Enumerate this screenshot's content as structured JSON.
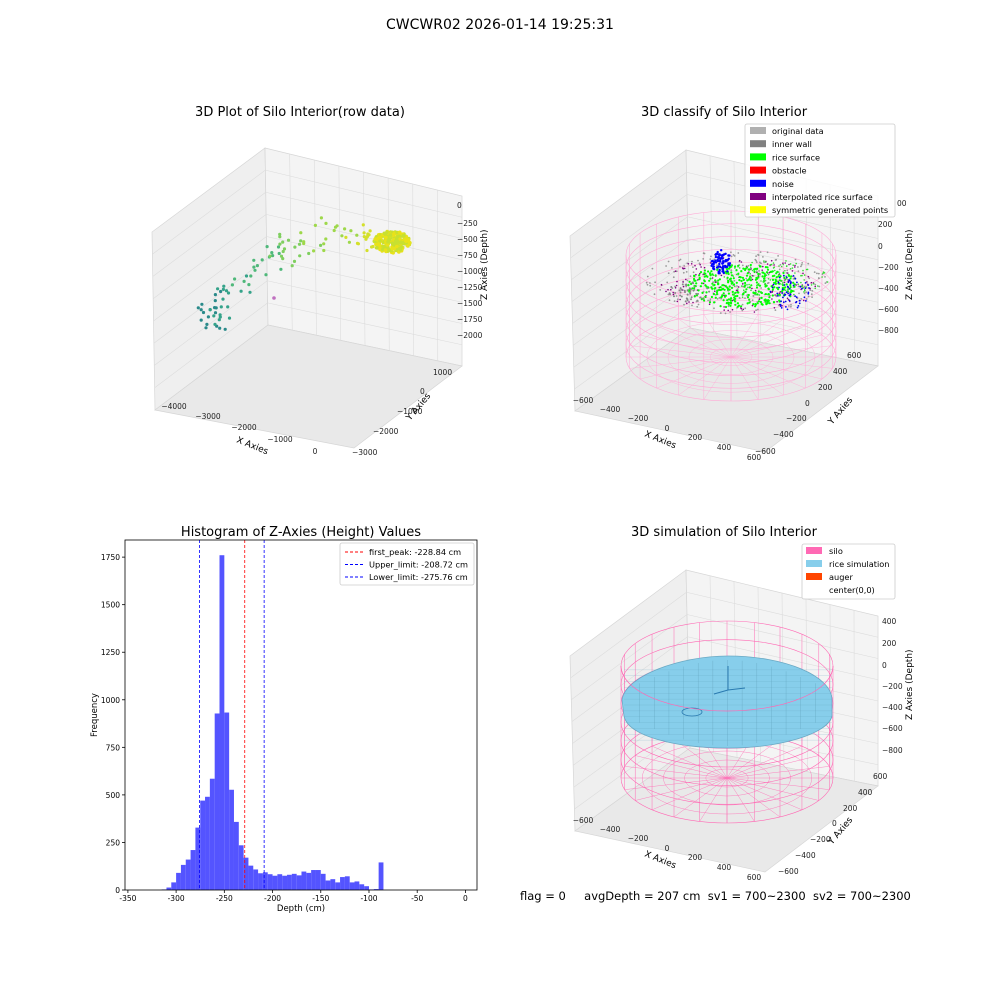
{
  "figure_title": "CWCWR02 2026-01-14 19:25:31",
  "status": {
    "flag": "flag = 0",
    "avg_depth": "avgDepth = 207 cm",
    "sv1": "sv1 = 700~2300",
    "sv2": "sv2 = 700~2300"
  },
  "colors": {
    "original_data": "#b0b0b0",
    "inner_wall": "#808080",
    "rice_surface": "#00ff00",
    "obstacle": "#ff0000",
    "noise": "#0000ff",
    "interpolated_rice_surface": "#800080",
    "symmetric_generated_points": "#ffff00",
    "silo": "#ff69b4",
    "rice_simulation": "#87ceeb",
    "auger": "#ff4500",
    "histogram_bar": "#4b4bff",
    "first_peak_line": "#ff0000",
    "limit_line": "#0000ff"
  },
  "chart_data": [
    {
      "type": "scatter",
      "title": "3D Plot of Silo Interior(row data)",
      "xlabel": "X Axies",
      "ylabel": "Y Axies",
      "zlabel": "Z Axies (Depth)",
      "x_ticks": [
        "−4000",
        "−3000",
        "−2000",
        "−1000",
        "0"
      ],
      "y_ticks": [
        "1000",
        "0",
        "−1000",
        "−2000",
        "−3000"
      ],
      "z_ticks": [
        "0",
        "−250",
        "−500",
        "−750",
        "−1000",
        "−1250",
        "−1500",
        "−1750",
        "−2000"
      ]
    },
    {
      "type": "scatter",
      "title": "3D classify of Silo Interior",
      "xlabel": "X Axies",
      "ylabel": "Y Axies",
      "zlabel": "Z Axies (Depth)",
      "x_ticks": [
        "−600",
        "−400",
        "−200",
        "0",
        "200",
        "400",
        "600"
      ],
      "y_ticks": [
        "600",
        "400",
        "200",
        "0",
        "−200",
        "−400",
        "−600"
      ],
      "z_ticks": [
        "200",
        "0",
        "−200",
        "−400",
        "−600",
        "−800"
      ],
      "z_top_partial_label": "00",
      "legend": [
        {
          "label": "original data",
          "color": "#b0b0b0"
        },
        {
          "label": "inner wall",
          "color": "#808080"
        },
        {
          "label": "rice surface",
          "color": "#00ff00"
        },
        {
          "label": "obstacle",
          "color": "#ff0000"
        },
        {
          "label": "noise",
          "color": "#0000ff"
        },
        {
          "label": "interpolated rice surface",
          "color": "#800080"
        },
        {
          "label": "symmetric generated points",
          "color": "#ffff00"
        }
      ],
      "legend_position": "top-right"
    },
    {
      "type": "bar",
      "title": "Histogram of Z-Axies (Height) Values",
      "xlabel": "Depth (cm)",
      "ylabel": "Frequency",
      "xlim": [
        -353,
        12
      ],
      "ylim": [
        0,
        1840
      ],
      "x_ticks": [
        -350,
        -300,
        -250,
        -200,
        -150,
        -100,
        -50,
        0
      ],
      "y_ticks": [
        0,
        250,
        500,
        750,
        1000,
        1250,
        1500,
        1750
      ],
      "bin_width": 5,
      "bin_start": -315,
      "values": [
        3,
        13,
        40,
        90,
        132,
        160,
        210,
        328,
        470,
        490,
        585,
        928,
        1760,
        933,
        527,
        358,
        235,
        170,
        128,
        108,
        88,
        93,
        83,
        75,
        83,
        75,
        80,
        85,
        77,
        97,
        90,
        105,
        105,
        85,
        50,
        57,
        40,
        68,
        72,
        40,
        45,
        30,
        20,
        3,
        5,
        145
      ],
      "vlines": [
        {
          "x": -228.84,
          "style": "first_peak_line"
        },
        {
          "x": -208.72,
          "style": "limit_line"
        },
        {
          "x": -275.76,
          "style": "limit_line"
        }
      ],
      "legend": [
        {
          "label": "first_peak: -228.84 cm",
          "color": "#ff0000"
        },
        {
          "label": "Upper_limit: -208.72 cm",
          "color": "#0000ff"
        },
        {
          "label": "Lower_limit: -275.76 cm",
          "color": "#0000ff"
        }
      ],
      "legend_position": "top-right"
    },
    {
      "type": "area",
      "title": "3D simulation of Silo Interior",
      "xlabel": "X Axies",
      "ylabel": "Y Axies",
      "zlabel": "Z Axies (Depth)",
      "x_ticks": [
        "−600",
        "−400",
        "−200",
        "0",
        "200",
        "400",
        "600"
      ],
      "y_ticks": [
        "600",
        "400",
        "200",
        "0",
        "−200",
        "−400",
        "−600"
      ],
      "z_ticks": [
        "400",
        "200",
        "0",
        "−200",
        "−400",
        "−600",
        "−800"
      ],
      "legend": [
        {
          "label": "silo",
          "color": "#ff69b4"
        },
        {
          "label": "rice simulation",
          "color": "#87ceeb"
        },
        {
          "label": "auger",
          "color": "#ff4500"
        },
        {
          "label": "center(0,0)",
          "color": ""
        }
      ],
      "legend_position": "top-right"
    }
  ]
}
